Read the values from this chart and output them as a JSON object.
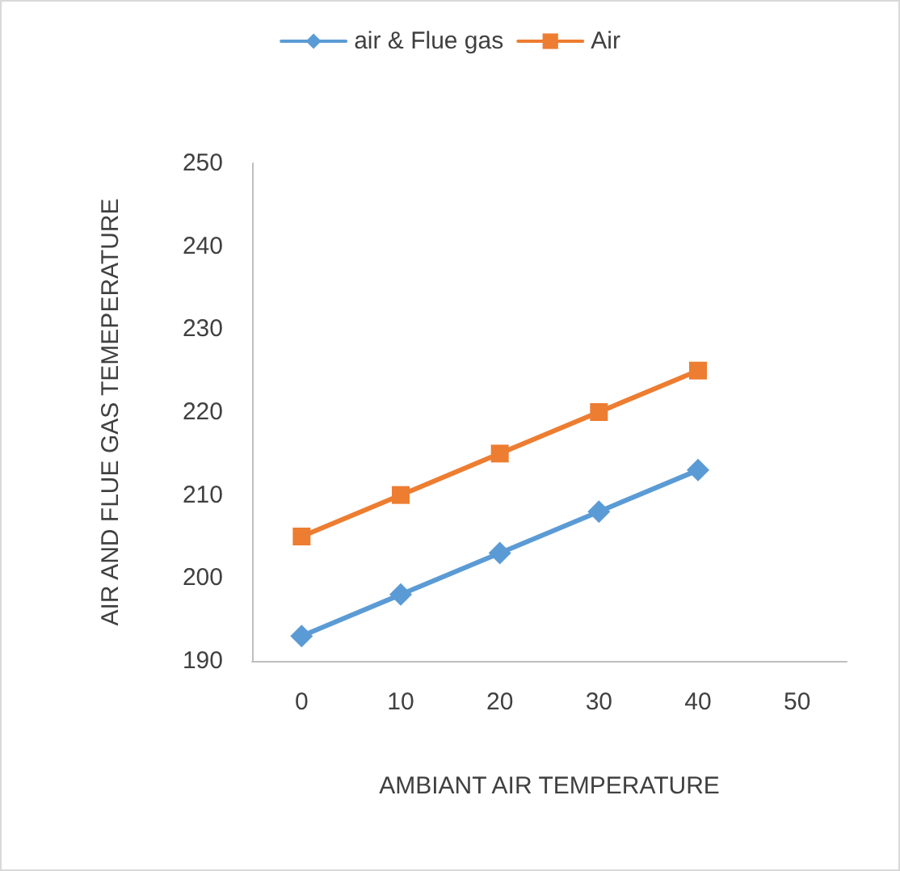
{
  "chart_data": {
    "type": "line",
    "xlabel": "AMBIANT AIR TEMPERATURE",
    "ylabel": "AIR AND FLUE GAS TEMEPERATURE",
    "x": [
      0,
      10,
      20,
      30,
      40
    ],
    "series": [
      {
        "name": "air & Flue gas",
        "color": "#5b9bd5",
        "marker": "diamond",
        "values": [
          193,
          198,
          203,
          208,
          213
        ]
      },
      {
        "name": "Air",
        "color": "#ed7d31",
        "marker": "square",
        "values": [
          205,
          210,
          215,
          220,
          225
        ]
      }
    ],
    "xlim": [
      -5,
      55
    ],
    "xticks": [
      0,
      10,
      20,
      30,
      40,
      50
    ],
    "ylim": [
      190,
      250
    ],
    "yticks": [
      190,
      200,
      210,
      220,
      230,
      240,
      250
    ],
    "grid": false,
    "legend": "top",
    "line_style": "solid"
  }
}
